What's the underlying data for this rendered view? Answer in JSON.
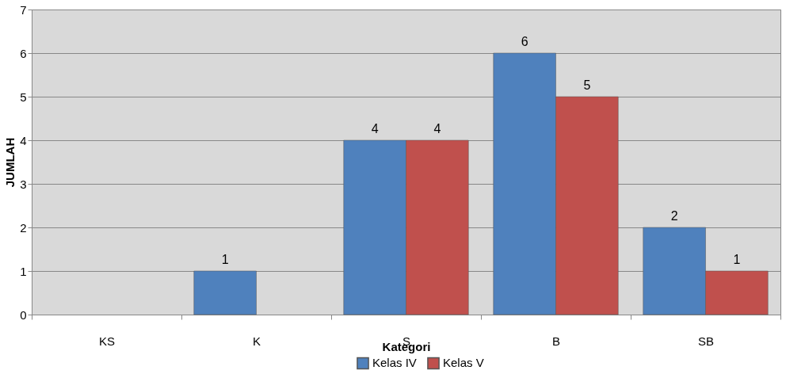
{
  "chart_data": {
    "type": "bar",
    "xlabel": "Kategori",
    "ylabel": "JUMLAH",
    "categories": [
      "KS",
      "K",
      "S",
      "B",
      "SB"
    ],
    "series": [
      {
        "name": "Kelas IV",
        "color": "#4f81bd",
        "values": [
          0,
          1,
          4,
          6,
          2
        ],
        "value_labels": [
          null,
          "1",
          "4",
          "6",
          "2"
        ]
      },
      {
        "name": "Kelas V",
        "color": "#c0504d",
        "values": [
          0,
          0,
          4,
          5,
          1
        ],
        "value_labels": [
          null,
          null,
          "4",
          "5",
          "1"
        ]
      }
    ],
    "ylim": [
      0,
      7
    ],
    "yticks": [
      0,
      1,
      2,
      3,
      4,
      5,
      6,
      7
    ],
    "grid": "y",
    "legend": "bottom"
  }
}
